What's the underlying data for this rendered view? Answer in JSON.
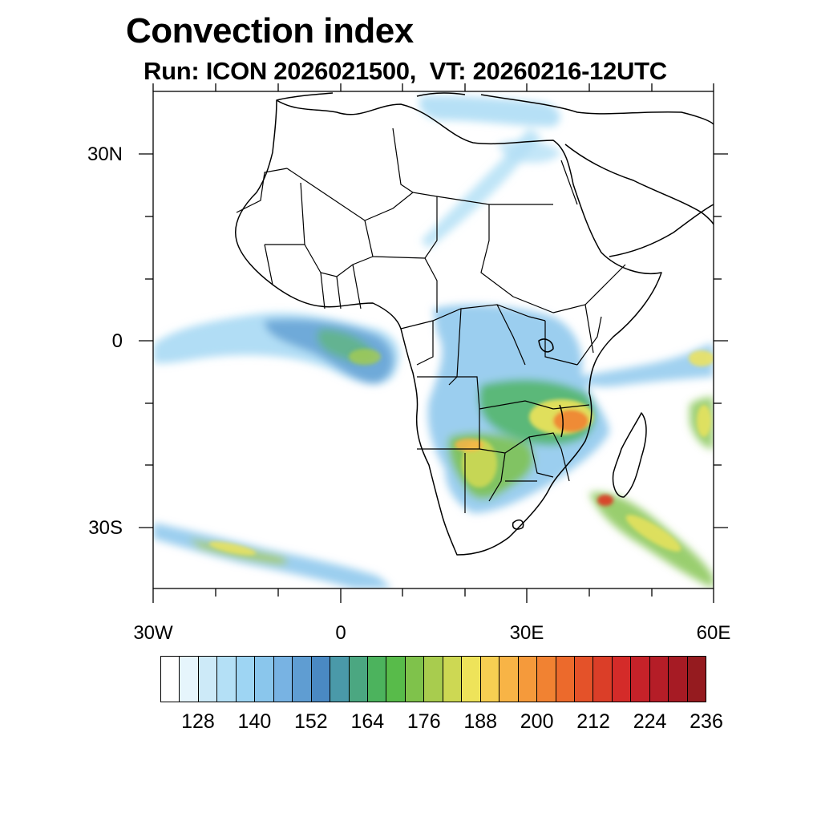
{
  "title": "Convection index",
  "subtitle": "Run: ICON 2026021500,  VT: 20260216-12UTC",
  "axes": {
    "lat_labels": [
      "30N",
      "0",
      "30S"
    ],
    "lon_labels": [
      "30W",
      "0",
      "30E",
      "60E"
    ]
  },
  "map": {
    "lon_range": [
      -30,
      60
    ],
    "lat_range": [
      -40,
      40
    ],
    "regions": [
      {
        "name": "eastern-atlantic-equatorial-band",
        "level": 146
      },
      {
        "name": "gulf-of-guinea-cluster",
        "level": 164
      },
      {
        "name": "congo-basin-cells",
        "level": 170
      },
      {
        "name": "zambia-malawi-core",
        "level": 212
      },
      {
        "name": "angola-namibia-core",
        "level": 186
      },
      {
        "name": "mozambique-channel-band",
        "level": 200
      },
      {
        "name": "southwest-indian-ocean-front",
        "level": 218
      },
      {
        "name": "south-atlantic-front",
        "level": 182
      },
      {
        "name": "sahara-to-egypt-streak",
        "level": 140
      },
      {
        "name": "indian-ocean-equatorial-band",
        "level": 194
      }
    ]
  },
  "colorbar": {
    "colors": [
      "#ffffff",
      "#e6f5fc",
      "#cdeaf8",
      "#b4e0f6",
      "#9ed5f3",
      "#8ac6ec",
      "#78b3e3",
      "#5f9dd2",
      "#4a89c3",
      "#4a99a9",
      "#4ba781",
      "#4cb35d",
      "#58bb4a",
      "#7fc24b",
      "#a8cc4e",
      "#cdd853",
      "#eee35a",
      "#f7cf52",
      "#f8b446",
      "#f59a3b",
      "#f18232",
      "#ec6a2c",
      "#e45229",
      "#db3e28",
      "#d42b29",
      "#c52229",
      "#b51d27",
      "#a61b24",
      "#951b1f"
    ],
    "labels": [
      "128",
      "140",
      "152",
      "164",
      "176",
      "188",
      "200",
      "212",
      "224",
      "236"
    ]
  }
}
